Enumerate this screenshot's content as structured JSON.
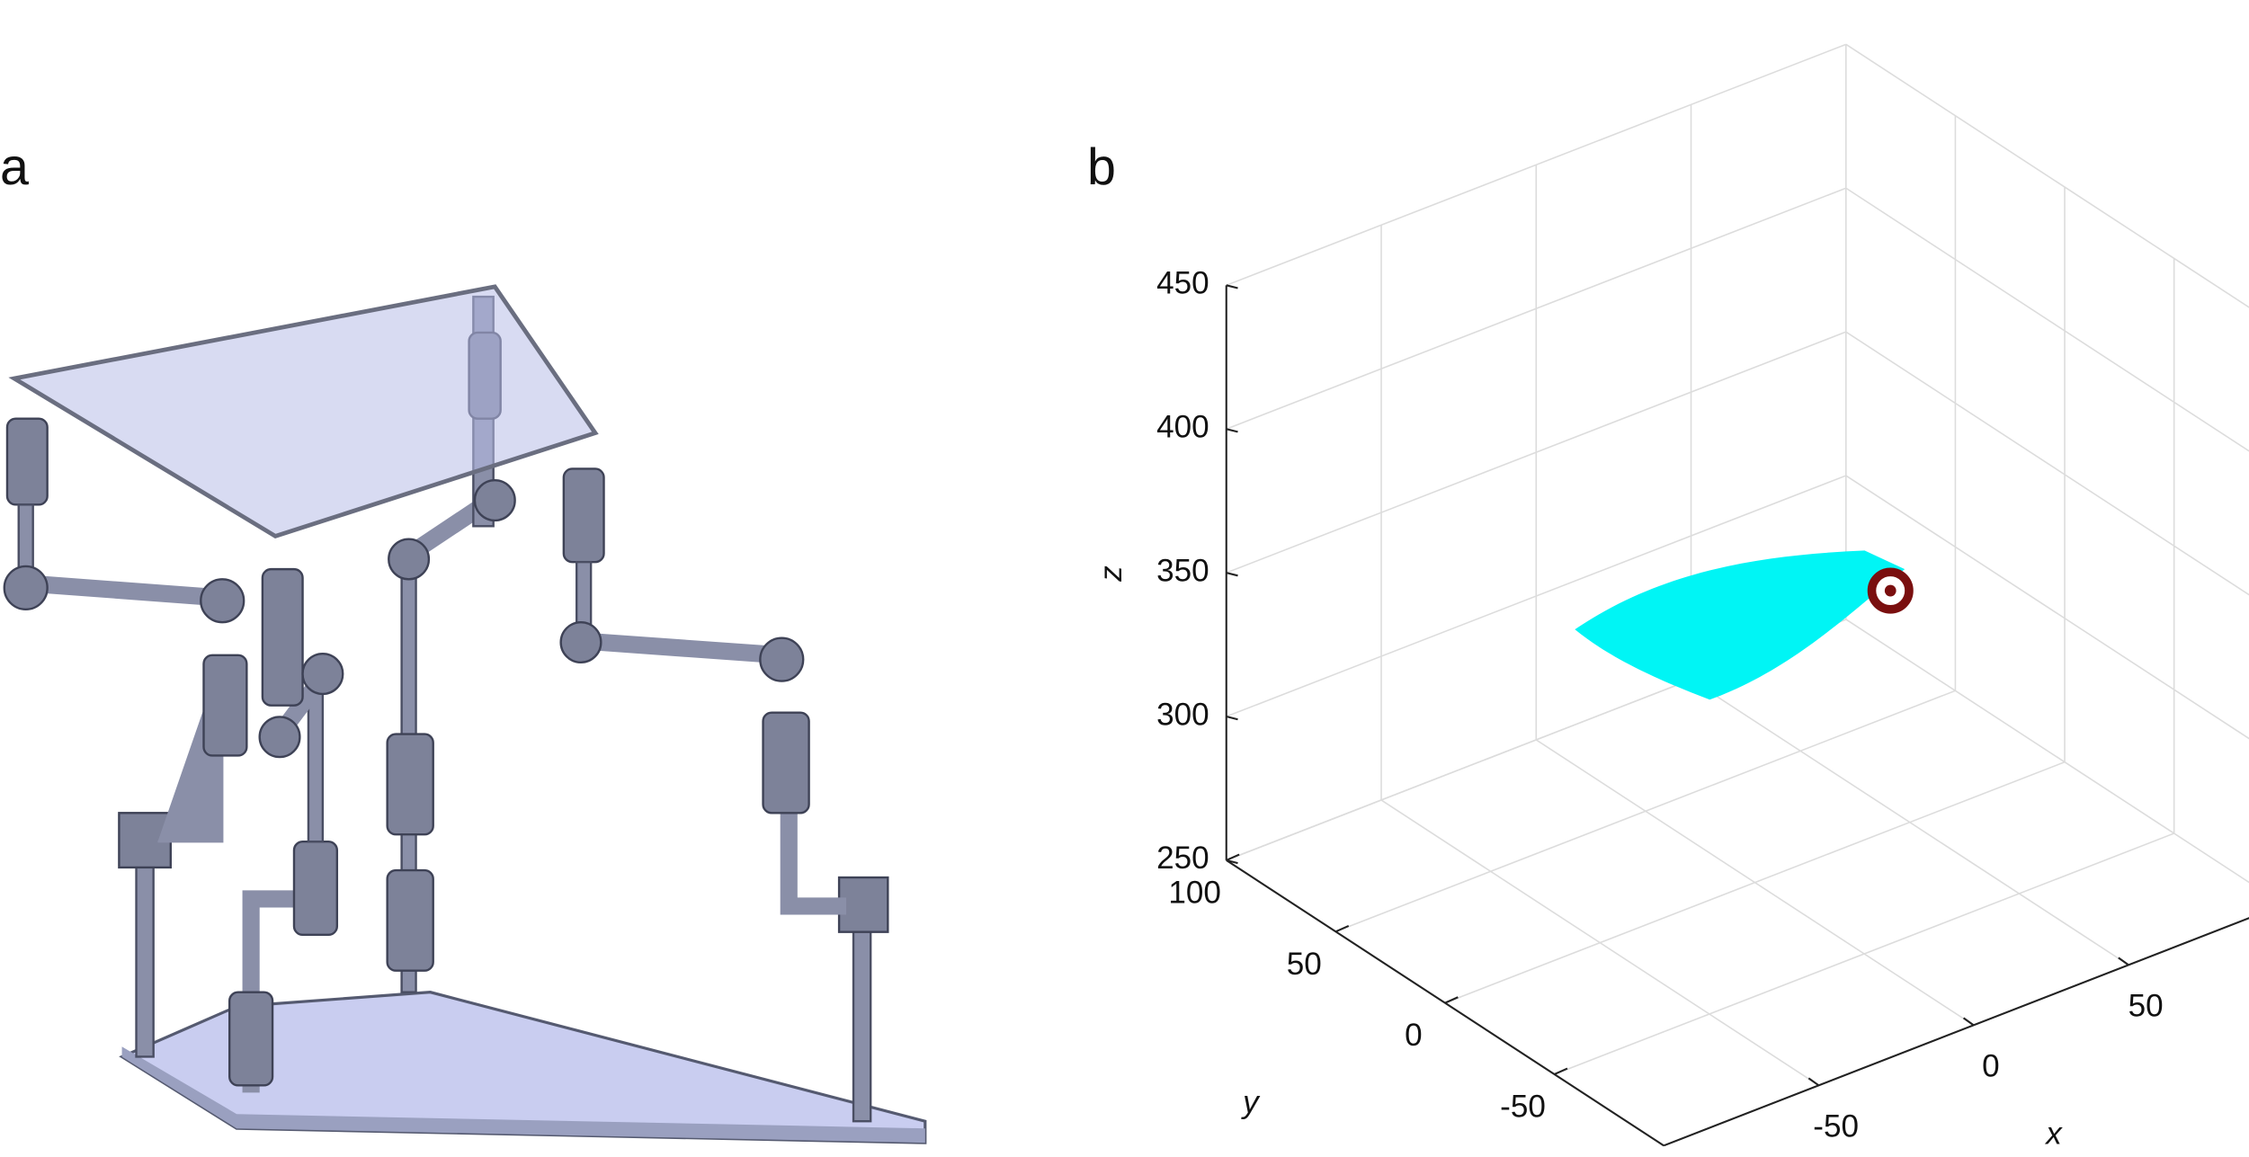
{
  "panel_labels": [
    "a",
    "b"
  ],
  "chart_data": {
    "type": "workspace3d",
    "xlabel": "x",
    "ylabel": "y",
    "zlabel": "z",
    "xlim": [
      -100,
      100
    ],
    "ylim": [
      -100,
      100
    ],
    "zlim": [
      250,
      450
    ],
    "xticks": [
      -50,
      0,
      50
    ],
    "yticks": [
      -50,
      0,
      50,
      100
    ],
    "zticks": [
      250,
      300,
      350,
      400,
      450
    ],
    "grid": true
  }
}
